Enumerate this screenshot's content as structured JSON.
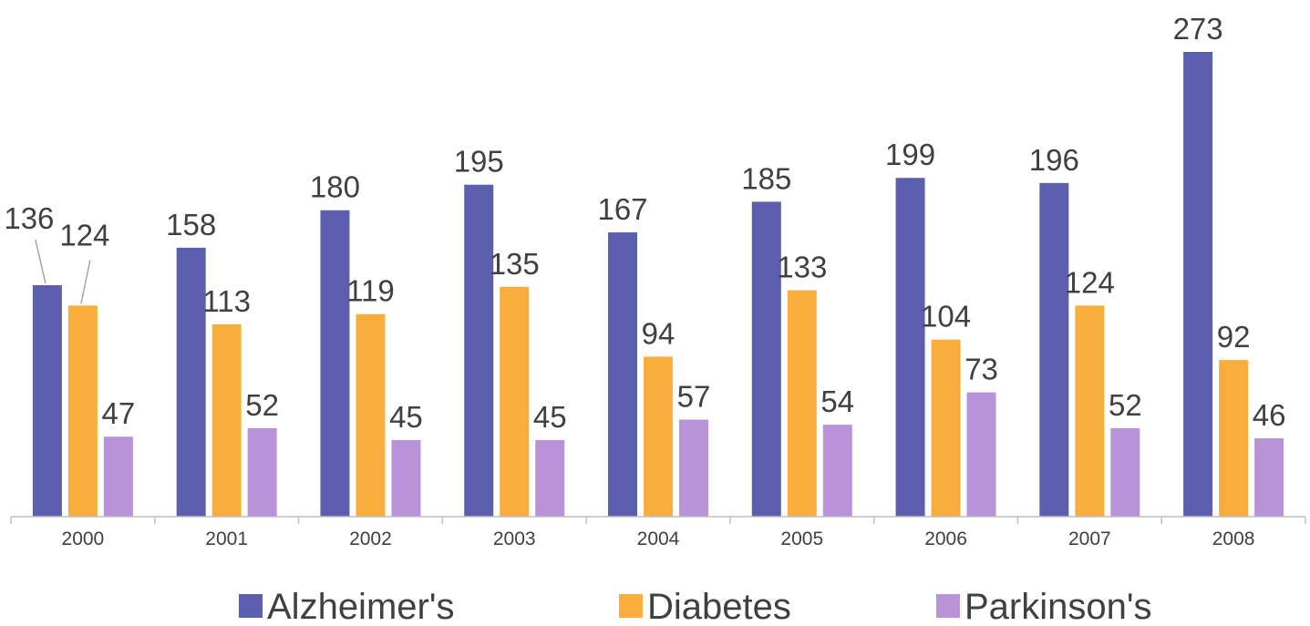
{
  "chart_data": {
    "type": "bar",
    "categories": [
      "2000",
      "2001",
      "2002",
      "2003",
      "2004",
      "2005",
      "2006",
      "2007",
      "2008"
    ],
    "series": [
      {
        "name": "Alzheimer's",
        "color": "#5B5FAE",
        "values": [
          136,
          158,
          180,
          195,
          167,
          185,
          199,
          196,
          273
        ]
      },
      {
        "name": "Diabetes",
        "color": "#F9AD3C",
        "values": [
          124,
          113,
          119,
          135,
          94,
          133,
          104,
          124,
          92
        ]
      },
      {
        "name": "Parkinson's",
        "color": "#B893D8",
        "values": [
          47,
          52,
          45,
          45,
          57,
          54,
          73,
          52,
          46
        ]
      }
    ],
    "ylim": [
      0,
      280
    ],
    "grid": false,
    "data_labels": true,
    "legend_position": "bottom",
    "axis_color": "#BFBFBF",
    "text_color": "#404040"
  }
}
